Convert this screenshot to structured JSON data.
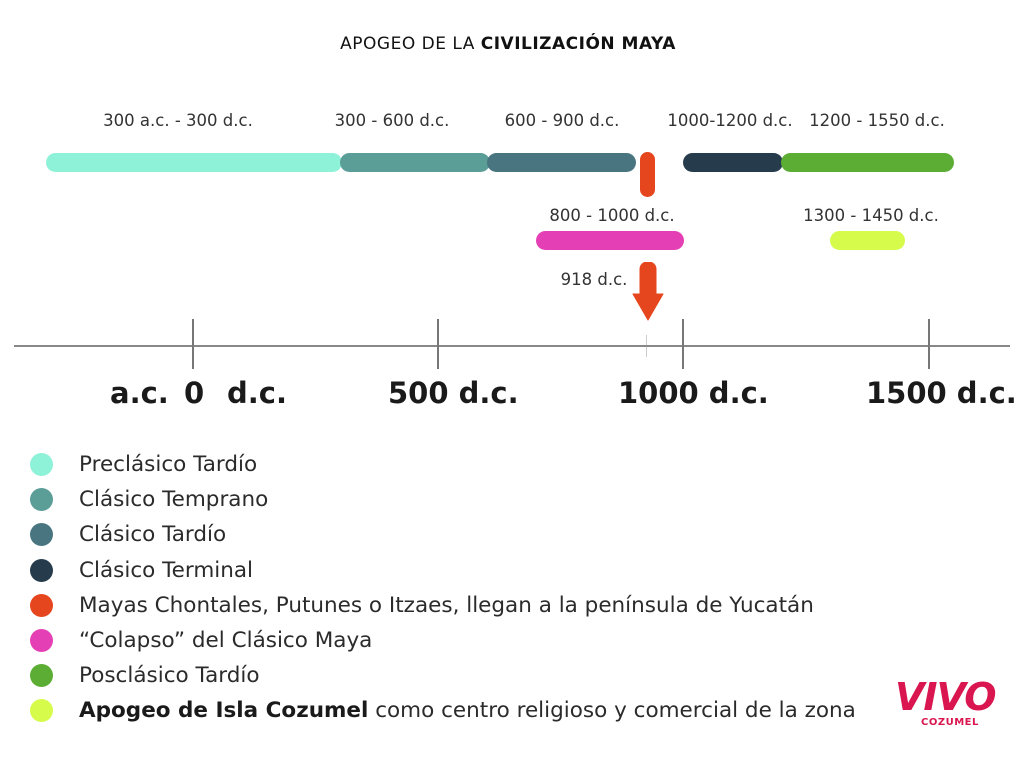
{
  "title": {
    "prefix": "APOGEO DE LA ",
    "bold": "CIVILIZACIÓN MAYA"
  },
  "periods": [
    {
      "label": "300 a.c. - 300 d.c.",
      "color": "#8ef2d8"
    },
    {
      "label": "300 - 600 d.c.",
      "color": "#5a9e97"
    },
    {
      "label": "600 - 900 d.c.",
      "color": "#48757f"
    },
    {
      "label": "1000-1200 d.c.",
      "color": "#263c4d"
    },
    {
      "label": "1200 - 1550 d.c.",
      "color": "#5cad34"
    },
    {
      "label": "800 - 1000 d.c.",
      "color": "#e43fb5"
    },
    {
      "label": "1300 - 1450 d.c.",
      "color": "#d6fb4a"
    }
  ],
  "event": {
    "label": "918 d.c.",
    "color": "#e5461d"
  },
  "axis": {
    "labels": [
      "a.c.",
      "0",
      "d.c.",
      "500 d.c.",
      "1000 d.c.",
      "1500 d.c."
    ]
  },
  "legend": [
    {
      "text": "Preclásico Tardío",
      "color": "#8ef2d8"
    },
    {
      "text": "Clásico Temprano",
      "color": "#5a9e97"
    },
    {
      "text": "Clásico Tardío",
      "color": "#48757f"
    },
    {
      "text": "Clásico Terminal",
      "color": "#263c4d"
    },
    {
      "text": "Mayas Chontales, Putunes o Itzaes, llegan a la península de Yucatán",
      "color": "#e5461d"
    },
    {
      "text": "“Colapso” del Clásico Maya",
      "color": "#e43fb5"
    },
    {
      "text": "Posclásico Tardío",
      "color": "#5cad34"
    },
    {
      "bold": "Apogeo de Isla Cozumel",
      "text": " como centro religioso y comercial de la zona",
      "color": "#d6fb4a"
    }
  ],
  "logo": {
    "main": "VIVO",
    "sub": "COZUMEL",
    "color": "#d9164f"
  }
}
